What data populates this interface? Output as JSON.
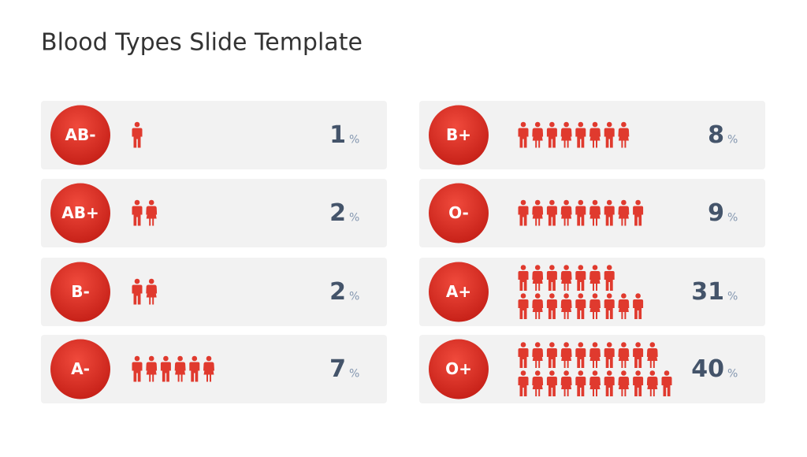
{
  "title": "Blood Types Slide Template",
  "items": [
    {
      "label": "AB-",
      "value": 1,
      "unit": "%"
    },
    {
      "label": "AB+",
      "value": 2,
      "unit": "%"
    },
    {
      "label": "B-",
      "value": 2,
      "unit": "%"
    },
    {
      "label": "A-",
      "value": 7,
      "unit": "%"
    },
    {
      "label": "B+",
      "value": 8,
      "unit": "%"
    },
    {
      "label": "O-",
      "value": 9,
      "unit": "%"
    },
    {
      "label": "A+",
      "value": 31,
      "unit": "%"
    },
    {
      "label": "O+",
      "value": 40,
      "unit": "%"
    }
  ]
}
